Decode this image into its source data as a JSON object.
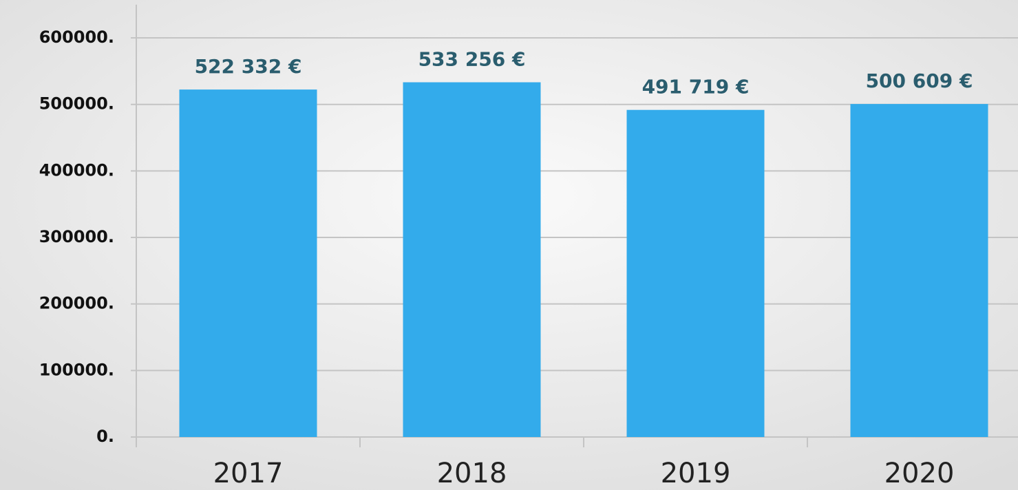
{
  "chart_data": {
    "type": "bar",
    "categories": [
      "2017",
      "2018",
      "2019",
      "2020"
    ],
    "values": [
      522332,
      533256,
      491719,
      500609
    ],
    "value_labels": [
      "522 332 €",
      "533 256 €",
      "491 719 €",
      "500 609 €"
    ],
    "color": "#33abeb",
    "ylim": [
      0,
      650000
    ],
    "yticks": [
      {
        "value": 0,
        "label": "0."
      },
      {
        "value": 100000,
        "label": "100000."
      },
      {
        "value": 200000,
        "label": "200000."
      },
      {
        "value": 300000,
        "label": "300000."
      },
      {
        "value": 400000,
        "label": "400000."
      },
      {
        "value": 500000,
        "label": "500000."
      },
      {
        "value": 600000,
        "label": "600000."
      }
    ],
    "grid": true
  }
}
